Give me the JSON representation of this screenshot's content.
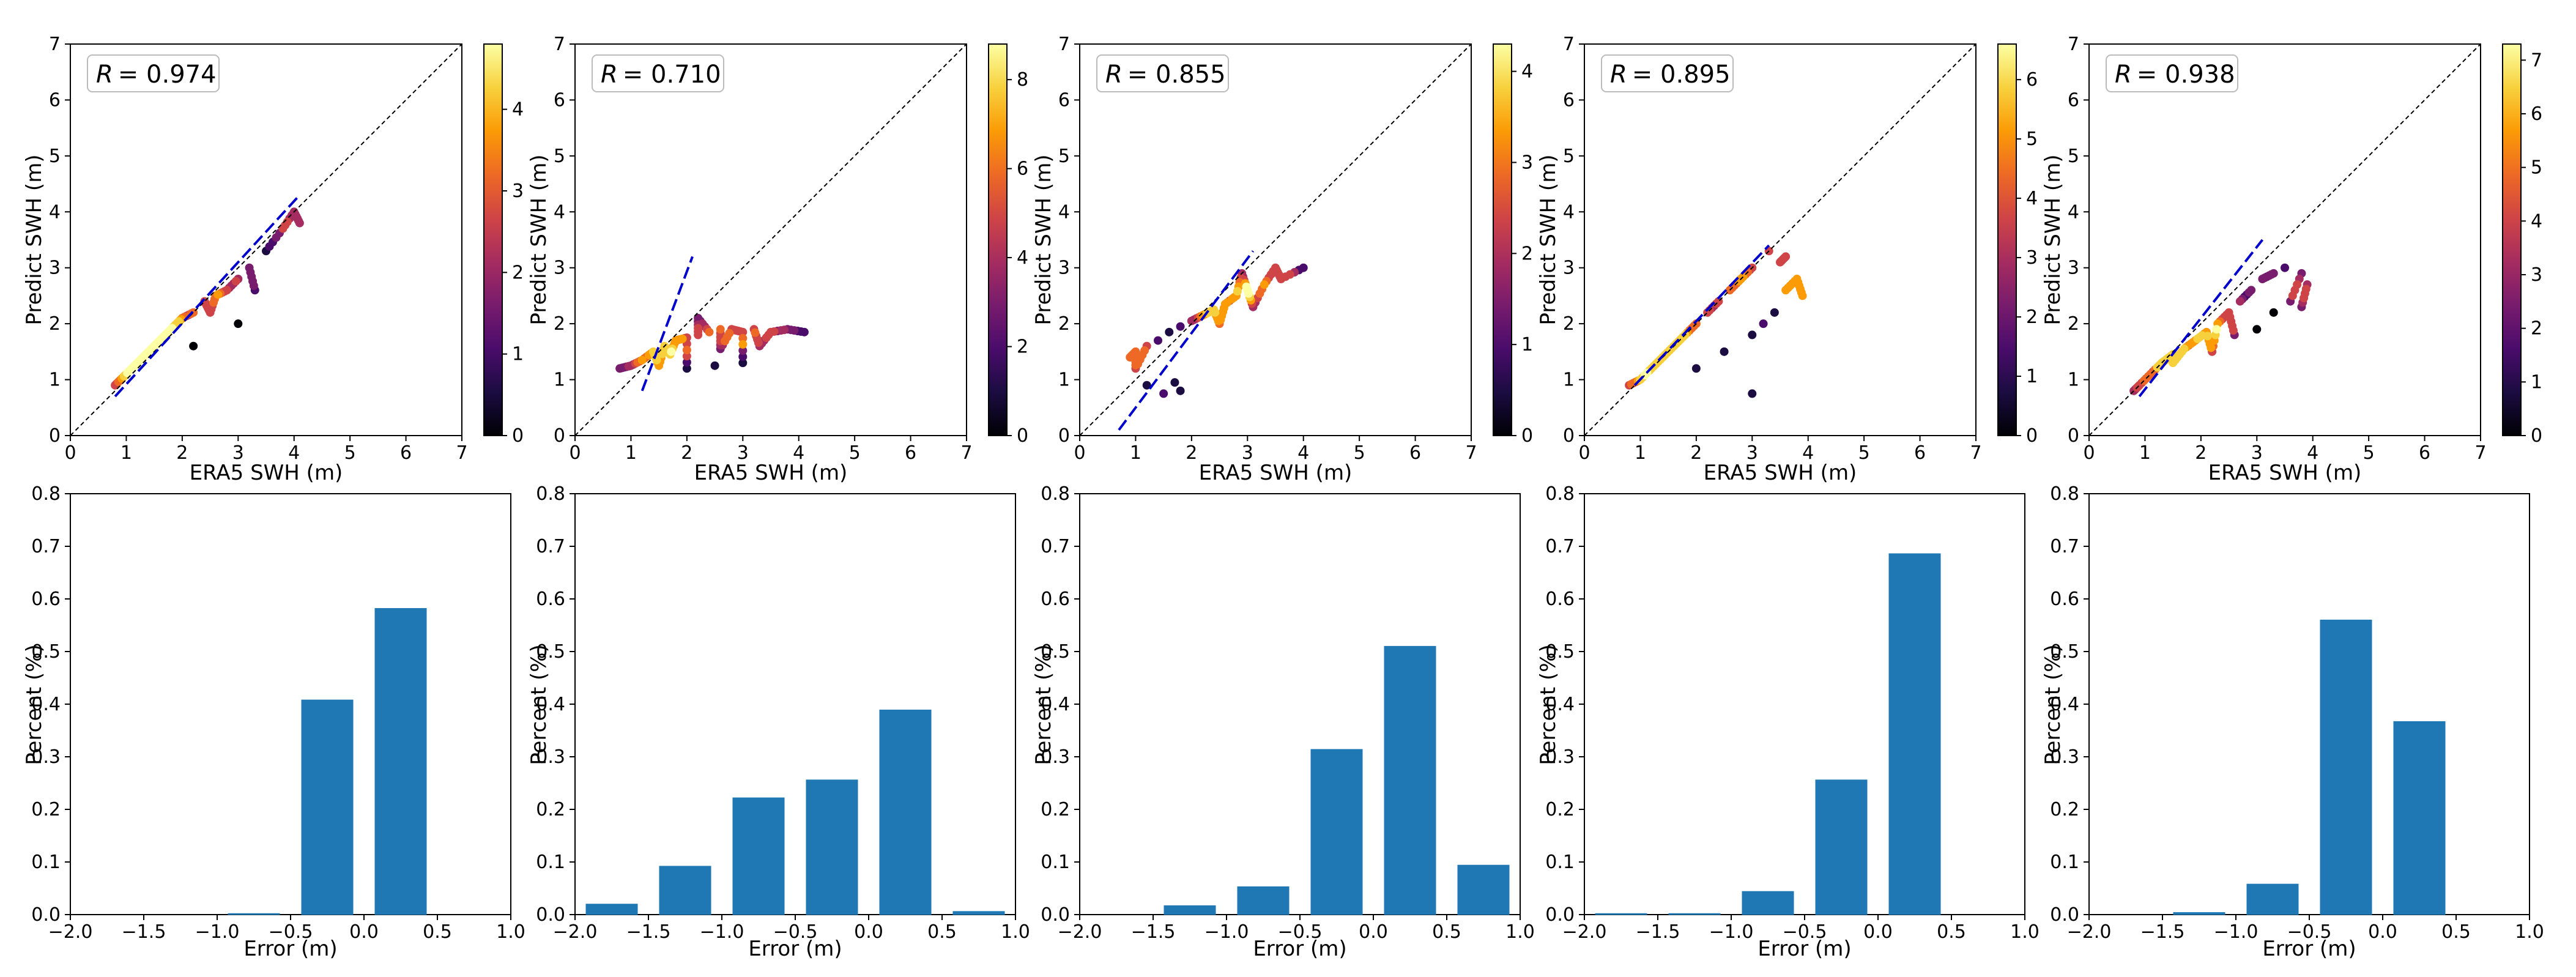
{
  "figure": {
    "scatter_panels": [
      {
        "r_label": "R",
        "r_value": "= 0.974",
        "xlabel": "ERA5 SWH (m)",
        "ylabel": "Predict SWH (m)"
      },
      {
        "r_label": "R",
        "r_value": "= 0.710",
        "xlabel": "ERA5 SWH (m)",
        "ylabel": "Predict SWH (m)"
      },
      {
        "r_label": "R",
        "r_value": "= 0.855",
        "xlabel": "ERA5 SWH (m)",
        "ylabel": "Predict SWH (m)"
      },
      {
        "r_label": "R",
        "r_value": "= 0.895",
        "xlabel": "ERA5 SWH (m)",
        "ylabel": "Predict SWH (m)"
      },
      {
        "r_label": "R",
        "r_value": "= 0.938",
        "xlabel": "ERA5 SWH (m)",
        "ylabel": "Predict SWH (m)"
      }
    ],
    "hist_panels": [
      {
        "xlabel": "Error (m)",
        "ylabel": "Percent (%)"
      },
      {
        "xlabel": "Error (m)",
        "ylabel": "Percent (%)"
      },
      {
        "xlabel": "Error (m)",
        "ylabel": "Percent (%)"
      },
      {
        "xlabel": "Error (m)",
        "ylabel": "Percent (%)"
      },
      {
        "xlabel": "Error (m)",
        "ylabel": "Percent (%)"
      }
    ]
  },
  "chart_data": [
    {
      "type": "scatter",
      "title": "",
      "xlabel": "ERA5 SWH (m)",
      "ylabel": "Predict SWH (m)",
      "xlim": [
        0,
        7
      ],
      "ylim": [
        0,
        7
      ],
      "annotation": "R = 0.974",
      "fit_line": {
        "x": [
          0.8,
          4.1
        ],
        "y": [
          0.7,
          4.3
        ]
      },
      "colorbar": {
        "min": 0,
        "max": 4.8,
        "ticks": [
          0,
          1,
          2,
          3,
          4
        ]
      },
      "points": [
        [
          0.8,
          0.9
        ],
        [
          0.9,
          1.0
        ],
        [
          1.0,
          1.1
        ],
        [
          1.1,
          1.2
        ],
        [
          1.2,
          1.3
        ],
        [
          1.3,
          1.4
        ],
        [
          1.4,
          1.5
        ],
        [
          1.5,
          1.6
        ],
        [
          1.6,
          1.7
        ],
        [
          1.7,
          1.8
        ],
        [
          1.8,
          1.9
        ],
        [
          1.9,
          2.0
        ],
        [
          2.0,
          2.1
        ],
        [
          2.2,
          2.2
        ],
        [
          2.4,
          2.4
        ],
        [
          2.6,
          2.5
        ],
        [
          2.8,
          2.6
        ],
        [
          3.0,
          2.8
        ],
        [
          3.2,
          3.0
        ],
        [
          3.5,
          3.3
        ],
        [
          3.8,
          3.7
        ],
        [
          4.0,
          4.0
        ],
        [
          4.1,
          3.8
        ],
        [
          3.0,
          2.0
        ],
        [
          2.2,
          1.6
        ],
        [
          2.5,
          2.2
        ],
        [
          3.3,
          2.6
        ]
      ]
    },
    {
      "type": "scatter",
      "title": "",
      "xlabel": "ERA5 SWH (m)",
      "ylabel": "Predict SWH (m)",
      "xlim": [
        0,
        7
      ],
      "ylim": [
        0,
        7
      ],
      "annotation": "R = 0.710",
      "fit_line": {
        "x": [
          1.2,
          2.1
        ],
        "y": [
          0.8,
          3.2
        ]
      },
      "colorbar": {
        "min": 0,
        "max": 8.8,
        "ticks": [
          0,
          2,
          4,
          6,
          8
        ]
      },
      "points": [
        [
          0.8,
          1.2
        ],
        [
          1.0,
          1.25
        ],
        [
          1.2,
          1.35
        ],
        [
          1.4,
          1.5
        ],
        [
          1.6,
          1.6
        ],
        [
          1.8,
          1.7
        ],
        [
          2.0,
          1.75
        ],
        [
          2.2,
          1.8
        ],
        [
          2.4,
          1.85
        ],
        [
          2.6,
          1.9
        ],
        [
          2.8,
          1.9
        ],
        [
          3.0,
          1.85
        ],
        [
          3.2,
          1.9
        ],
        [
          3.5,
          1.85
        ],
        [
          3.8,
          1.9
        ],
        [
          4.1,
          1.85
        ],
        [
          1.5,
          1.25
        ],
        [
          2.0,
          1.2
        ],
        [
          2.5,
          1.25
        ],
        [
          3.0,
          1.3
        ],
        [
          2.2,
          2.1
        ],
        [
          2.6,
          1.55
        ],
        [
          3.3,
          1.6
        ],
        [
          1.7,
          1.45
        ]
      ]
    },
    {
      "type": "scatter",
      "title": "",
      "xlabel": "ERA5 SWH (m)",
      "ylabel": "Predict SWH (m)",
      "xlim": [
        0,
        7
      ],
      "ylim": [
        0,
        7
      ],
      "annotation": "R = 0.855",
      "fit_line": {
        "x": [
          0.7,
          3.1
        ],
        "y": [
          0.1,
          3.3
        ]
      },
      "colorbar": {
        "min": 0,
        "max": 4.3,
        "ticks": [
          0,
          1,
          2,
          3,
          4
        ]
      },
      "points": [
        [
          0.9,
          1.4
        ],
        [
          1.0,
          1.5
        ],
        [
          1.2,
          1.6
        ],
        [
          1.4,
          1.7
        ],
        [
          1.6,
          1.85
        ],
        [
          1.8,
          1.95
        ],
        [
          2.0,
          2.05
        ],
        [
          2.2,
          2.15
        ],
        [
          2.4,
          2.25
        ],
        [
          2.6,
          2.35
        ],
        [
          2.8,
          2.5
        ],
        [
          3.0,
          2.6
        ],
        [
          3.3,
          2.7
        ],
        [
          3.6,
          2.8
        ],
        [
          4.0,
          3.0
        ],
        [
          1.2,
          0.9
        ],
        [
          1.5,
          0.75
        ],
        [
          1.8,
          0.8
        ],
        [
          1.7,
          0.95
        ],
        [
          1.0,
          1.2
        ],
        [
          2.5,
          2.0
        ],
        [
          3.1,
          2.3
        ],
        [
          3.5,
          3.0
        ],
        [
          2.9,
          2.9
        ]
      ]
    },
    {
      "type": "scatter",
      "title": "",
      "xlabel": "ERA5 SWH (m)",
      "ylabel": "Predict SWH (m)",
      "xlim": [
        0,
        7
      ],
      "ylim": [
        0,
        7
      ],
      "annotation": "R = 0.895",
      "fit_line": {
        "x": [
          0.9,
          3.3
        ],
        "y": [
          0.9,
          3.4
        ]
      },
      "colorbar": {
        "min": 0,
        "max": 6.6,
        "ticks": [
          0,
          1,
          2,
          3,
          4,
          5,
          6
        ]
      },
      "points": [
        [
          0.8,
          0.9
        ],
        [
          1.0,
          1.0
        ],
        [
          1.2,
          1.2
        ],
        [
          1.4,
          1.4
        ],
        [
          1.6,
          1.6
        ],
        [
          1.8,
          1.8
        ],
        [
          2.0,
          2.0
        ],
        [
          2.2,
          2.2
        ],
        [
          2.4,
          2.4
        ],
        [
          2.6,
          2.6
        ],
        [
          2.8,
          2.8
        ],
        [
          3.0,
          3.0
        ],
        [
          3.3,
          3.3
        ],
        [
          3.6,
          3.2
        ],
        [
          3.8,
          2.8
        ],
        [
          3.9,
          2.5
        ],
        [
          3.4,
          2.2
        ],
        [
          3.0,
          1.8
        ],
        [
          2.5,
          1.5
        ],
        [
          2.0,
          1.2
        ],
        [
          3.0,
          0.75
        ],
        [
          3.2,
          2.0
        ],
        [
          3.6,
          2.6
        ],
        [
          3.5,
          3.1
        ]
      ]
    },
    {
      "type": "scatter",
      "title": "",
      "xlabel": "ERA5 SWH (m)",
      "ylabel": "Predict SWH (m)",
      "xlim": [
        0,
        7
      ],
      "ylim": [
        0,
        7
      ],
      "annotation": "R = 0.938",
      "fit_line": {
        "x": [
          0.9,
          3.1
        ],
        "y": [
          0.7,
          3.5
        ]
      },
      "colorbar": {
        "min": 0,
        "max": 7.3,
        "ticks": [
          0,
          1,
          2,
          3,
          4,
          5,
          6,
          7
        ]
      },
      "points": [
        [
          0.8,
          0.8
        ],
        [
          0.9,
          0.9
        ],
        [
          1.1,
          1.1
        ],
        [
          1.3,
          1.3
        ],
        [
          1.5,
          1.45
        ],
        [
          1.7,
          1.55
        ],
        [
          1.9,
          1.7
        ],
        [
          2.1,
          1.85
        ],
        [
          2.3,
          2.0
        ],
        [
          2.5,
          2.2
        ],
        [
          2.7,
          2.4
        ],
        [
          2.9,
          2.6
        ],
        [
          3.1,
          2.8
        ],
        [
          3.3,
          2.9
        ],
        [
          3.5,
          3.0
        ],
        [
          3.8,
          2.9
        ],
        [
          3.9,
          2.7
        ],
        [
          3.6,
          2.4
        ],
        [
          3.3,
          2.2
        ],
        [
          3.0,
          1.9
        ],
        [
          2.6,
          1.8
        ],
        [
          3.8,
          2.3
        ],
        [
          2.2,
          1.5
        ],
        [
          1.5,
          1.3
        ]
      ]
    },
    {
      "type": "bar",
      "title": "",
      "xlabel": "Error (m)",
      "ylabel": "Percent (%)",
      "xlim": [
        -2.0,
        1.0
      ],
      "ylim": [
        0,
        0.8
      ],
      "bin_width": 0.35,
      "bin_centers": [
        -1.75,
        -1.25,
        -0.75,
        -0.25,
        0.25,
        0.75
      ],
      "values": [
        0.0,
        0.0,
        0.002,
        0.408,
        0.582,
        0.0
      ]
    },
    {
      "type": "bar",
      "title": "",
      "xlabel": "Error (m)",
      "ylabel": "Percent (%)",
      "xlim": [
        -2.0,
        1.0
      ],
      "ylim": [
        0,
        0.8
      ],
      "bin_width": 0.35,
      "bin_centers": [
        -1.75,
        -1.25,
        -0.75,
        -0.25,
        0.25,
        0.75
      ],
      "values": [
        0.02,
        0.092,
        0.222,
        0.256,
        0.389,
        0.006
      ]
    },
    {
      "type": "bar",
      "title": "",
      "xlabel": "Error (m)",
      "ylabel": "Percent (%)",
      "xlim": [
        -2.0,
        1.0
      ],
      "ylim": [
        0,
        0.8
      ],
      "bin_width": 0.35,
      "bin_centers": [
        -1.75,
        -1.25,
        -0.75,
        -0.25,
        0.25,
        0.75
      ],
      "values": [
        0.0,
        0.017,
        0.053,
        0.314,
        0.51,
        0.094
      ]
    },
    {
      "type": "bar",
      "title": "",
      "xlabel": "Error (m)",
      "ylabel": "Percent (%)",
      "xlim": [
        -2.0,
        1.0
      ],
      "ylim": [
        0,
        0.8
      ],
      "bin_width": 0.35,
      "bin_centers": [
        -1.75,
        -1.25,
        -0.75,
        -0.25,
        0.25,
        0.75
      ],
      "values": [
        0.002,
        0.002,
        0.044,
        0.256,
        0.686,
        0.0
      ]
    },
    {
      "type": "bar",
      "title": "",
      "xlabel": "Error (m)",
      "ylabel": "Percent (%)",
      "xlim": [
        -2.0,
        1.0
      ],
      "ylim": [
        0,
        0.8
      ],
      "bin_width": 0.35,
      "bin_centers": [
        -1.75,
        -1.25,
        -0.75,
        -0.25,
        0.25,
        0.75
      ],
      "values": [
        0.0,
        0.004,
        0.058,
        0.56,
        0.367,
        0.0
      ]
    }
  ],
  "colors": {
    "bar": "#1f78b4",
    "fit_line": "#0000cc",
    "diagonal": "#000000",
    "inferno": [
      "#000004",
      "#1b0c41",
      "#4a0c6b",
      "#781c6d",
      "#a52c60",
      "#cf4446",
      "#ed6925",
      "#fb9b06",
      "#f7d13d",
      "#fcffa4"
    ]
  }
}
